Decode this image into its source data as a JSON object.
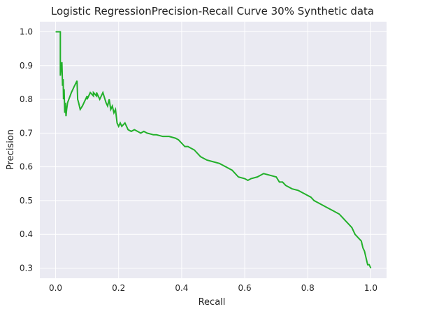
{
  "chart_data": {
    "type": "line",
    "title": "Logistic RegressionPrecision-Recall Curve 30% Synthetic data",
    "xlabel": "Recall",
    "ylabel": "Precision",
    "xlim": [
      -0.05,
      1.05
    ],
    "ylim": [
      0.27,
      1.03
    ],
    "xticks": [
      0.0,
      0.2,
      0.4,
      0.6,
      0.8,
      1.0
    ],
    "xtick_labels": [
      "0.0",
      "0.2",
      "0.4",
      "0.6",
      "0.8",
      "1.0"
    ],
    "yticks": [
      0.3,
      0.4,
      0.5,
      0.6,
      0.7,
      0.8,
      0.9,
      1.0
    ],
    "ytick_labels": [
      "0.3",
      "0.4",
      "0.5",
      "0.6",
      "0.7",
      "0.8",
      "0.9",
      "1.0"
    ],
    "grid": true,
    "background": "#eaeaf2",
    "line_color": "#22b02a",
    "series": [
      {
        "x": [
          0.0,
          0.015,
          0.015,
          0.018,
          0.02,
          0.022,
          0.024,
          0.025,
          0.027,
          0.029,
          0.031,
          0.033,
          0.035,
          0.038,
          0.042,
          0.05,
          0.06,
          0.068,
          0.07,
          0.073,
          0.078,
          0.085,
          0.1,
          0.1,
          0.11,
          0.12,
          0.12,
          0.13,
          0.13,
          0.14,
          0.145,
          0.15,
          0.16,
          0.165,
          0.17,
          0.175,
          0.18,
          0.185,
          0.19,
          0.195,
          0.2,
          0.205,
          0.21,
          0.22,
          0.23,
          0.24,
          0.25,
          0.27,
          0.28,
          0.29,
          0.31,
          0.32,
          0.34,
          0.36,
          0.38,
          0.39,
          0.41,
          0.42,
          0.43,
          0.44,
          0.46,
          0.48,
          0.5,
          0.52,
          0.54,
          0.56,
          0.58,
          0.6,
          0.61,
          0.62,
          0.64,
          0.66,
          0.68,
          0.7,
          0.71,
          0.72,
          0.73,
          0.75,
          0.77,
          0.79,
          0.81,
          0.82,
          0.84,
          0.86,
          0.88,
          0.9,
          0.91,
          0.92,
          0.93,
          0.94,
          0.95,
          0.96,
          0.97,
          0.975,
          0.98,
          0.985,
          0.99,
          0.995,
          1.0
        ],
        "y": [
          1.0,
          1.0,
          0.87,
          0.9,
          0.91,
          0.84,
          0.86,
          0.8,
          0.83,
          0.76,
          0.79,
          0.75,
          0.77,
          0.79,
          0.8,
          0.82,
          0.84,
          0.855,
          0.8,
          0.79,
          0.77,
          0.78,
          0.81,
          0.8,
          0.82,
          0.81,
          0.82,
          0.81,
          0.82,
          0.8,
          0.81,
          0.82,
          0.79,
          0.78,
          0.8,
          0.77,
          0.78,
          0.76,
          0.77,
          0.73,
          0.72,
          0.73,
          0.72,
          0.73,
          0.71,
          0.705,
          0.71,
          0.7,
          0.705,
          0.7,
          0.695,
          0.695,
          0.69,
          0.69,
          0.685,
          0.68,
          0.66,
          0.66,
          0.655,
          0.65,
          0.63,
          0.62,
          0.615,
          0.61,
          0.6,
          0.59,
          0.57,
          0.565,
          0.56,
          0.565,
          0.57,
          0.58,
          0.575,
          0.57,
          0.555,
          0.555,
          0.545,
          0.535,
          0.53,
          0.52,
          0.51,
          0.5,
          0.49,
          0.48,
          0.47,
          0.46,
          0.45,
          0.44,
          0.43,
          0.42,
          0.4,
          0.39,
          0.38,
          0.36,
          0.35,
          0.33,
          0.31,
          0.31,
          0.3
        ]
      }
    ]
  }
}
